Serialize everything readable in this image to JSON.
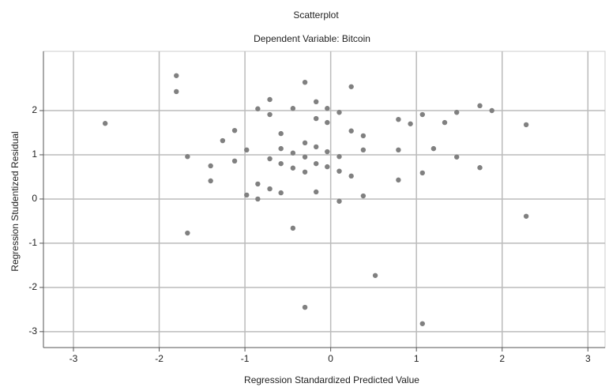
{
  "chart_data": {
    "type": "scatter",
    "title": "Scatterplot",
    "subtitle": "Dependent Variable: Bitcoin",
    "x_label": "Regression Standardized Predicted Value",
    "y_label": "Regression Studentized Residual",
    "xlim": [
      -3.35,
      3.2
    ],
    "ylim": [
      -3.36,
      3.34
    ],
    "xticks": [
      -3,
      -2,
      -1,
      0,
      1,
      2,
      3
    ],
    "yticks": [
      -3,
      -2,
      -1,
      0,
      1,
      2
    ],
    "grid": true,
    "color": "#808080",
    "x": [
      -2.63,
      -1.8,
      -1.8,
      -1.67,
      -1.67,
      -1.4,
      -1.4,
      -1.26,
      -1.12,
      -1.12,
      -0.98,
      -0.98,
      -0.85,
      -0.85,
      -0.85,
      -0.71,
      -0.71,
      -0.71,
      -0.71,
      -0.58,
      -0.58,
      -0.58,
      -0.58,
      -0.44,
      -0.44,
      -0.44,
      -0.44,
      -0.3,
      -0.3,
      -0.3,
      -0.3,
      -0.3,
      -0.17,
      -0.17,
      -0.17,
      -0.17,
      -0.17,
      -0.04,
      -0.04,
      -0.04,
      -0.04,
      0.1,
      0.1,
      0.1,
      0.1,
      0.24,
      0.24,
      0.24,
      0.38,
      0.38,
      0.38,
      0.52,
      0.79,
      0.79,
      0.79,
      0.93,
      1.07,
      1.07,
      1.07,
      1.2,
      1.33,
      1.47,
      1.47,
      1.74,
      1.74,
      1.88,
      2.28,
      2.28
    ],
    "values": [
      1.71,
      2.79,
      2.43,
      0.96,
      -0.77,
      0.75,
      0.41,
      1.32,
      1.55,
      0.86,
      1.11,
      0.09,
      2.04,
      0.34,
      0,
      2.25,
      1.91,
      0.91,
      0.23,
      1.48,
      1.14,
      0.8,
      0.14,
      2.05,
      1.04,
      0.7,
      -0.66,
      2.64,
      1.27,
      0.95,
      0.61,
      -2.45,
      2.2,
      1.82,
      1.18,
      0.8,
      0.16,
      2.05,
      1.73,
      1.07,
      0.73,
      1.96,
      0.96,
      0.63,
      -0.05,
      2.54,
      1.54,
      0.52,
      1.43,
      1.11,
      0.07,
      -1.73,
      1.8,
      1.11,
      0.43,
      1.7,
      1.91,
      0.59,
      -2.82,
      1.14,
      1.73,
      1.96,
      0.95,
      2.11,
      0.71,
      2,
      1.68,
      -0.39
    ]
  }
}
